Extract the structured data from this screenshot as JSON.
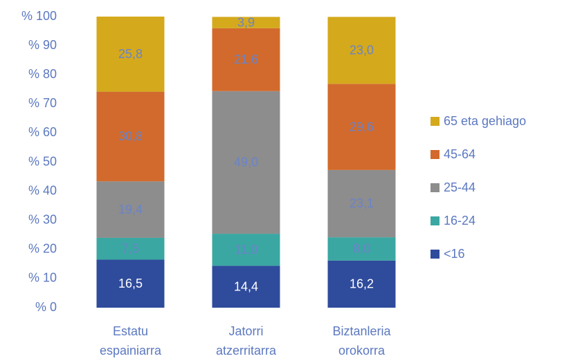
{
  "chart_data": {
    "type": "stacked_bar",
    "categories": [
      "Estatu espainiarra",
      "Jatorri atzerritarra",
      "Biztanleria orokorra"
    ],
    "series": [
      {
        "name": "<16",
        "color": "#2f4b9c",
        "values": [
          16.5,
          14.4,
          16.2
        ],
        "value_labels": [
          "16,5",
          "14,4",
          "16,2"
        ]
      },
      {
        "name": "16-24",
        "color": "#3ba7a2",
        "values": [
          7.5,
          11.0,
          8.0
        ],
        "value_labels": [
          "7,5",
          "11,0",
          "8,0"
        ]
      },
      {
        "name": "25-44",
        "color": "#8d8d8d",
        "values": [
          19.4,
          49.0,
          23.1
        ],
        "value_labels": [
          "19,4",
          "49,0",
          "23,1"
        ]
      },
      {
        "name": "45-64",
        "color": "#d16a2c",
        "values": [
          30.8,
          21.6,
          29.6
        ],
        "value_labels": [
          "30,8",
          "21,6",
          "29,6"
        ]
      },
      {
        "name": "65 eta gehiago",
        "color": "#d4a91c",
        "values": [
          25.8,
          3.9,
          23.0
        ],
        "value_labels": [
          "25,8",
          "3,9",
          "23,0"
        ]
      }
    ],
    "ylim": [
      0,
      100
    ],
    "yticks": [
      {
        "value": 0,
        "label": "% 0"
      },
      {
        "value": 10,
        "label": "% 10"
      },
      {
        "value": 20,
        "label": "% 20"
      },
      {
        "value": 30,
        "label": "% 30"
      },
      {
        "value": 40,
        "label": "% 40"
      },
      {
        "value": 50,
        "label": "% 50"
      },
      {
        "value": 60,
        "label": "% 60"
      },
      {
        "value": 70,
        "label": "% 70"
      },
      {
        "value": 80,
        "label": "% 80"
      },
      {
        "value": 90,
        "label": "% 90"
      },
      {
        "value": 100,
        "label": "% 100"
      }
    ],
    "legend": "right"
  }
}
